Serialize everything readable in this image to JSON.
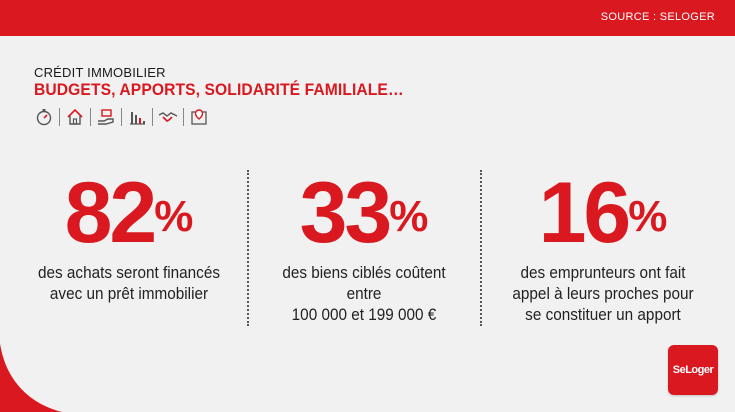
{
  "topbar": {
    "source_label": "SOURCE : SELOGER"
  },
  "header": {
    "kicker": "CRÉDIT IMMOBILIER",
    "headline": "BUDGETS, APPORTS, SOLIDARITÉ FAMILIALE…"
  },
  "icons": [
    "stopwatch-icon",
    "house-icon",
    "hand-money-icon",
    "bar-chart-icon",
    "handshake-icon",
    "map-pin-icon"
  ],
  "stats": [
    {
      "value": "82",
      "unit": "%",
      "line1": "des achats seront financés",
      "line2": "avec un prêt immobilier",
      "line3": ""
    },
    {
      "value": "33",
      "unit": "%",
      "line1": "des biens ciblés coûtent entre",
      "line2": "100 000 et 199 000 €",
      "line3": ""
    },
    {
      "value": "16",
      "unit": "%",
      "line1": "des emprunteurs ont fait",
      "line2": "appel à leurs proches pour",
      "line3": "se constituer un apport"
    }
  ],
  "logo": {
    "label": "SeLoger"
  },
  "colors": {
    "accent": "#d9181f",
    "background": "#f1f1f1",
    "text": "#222222"
  }
}
